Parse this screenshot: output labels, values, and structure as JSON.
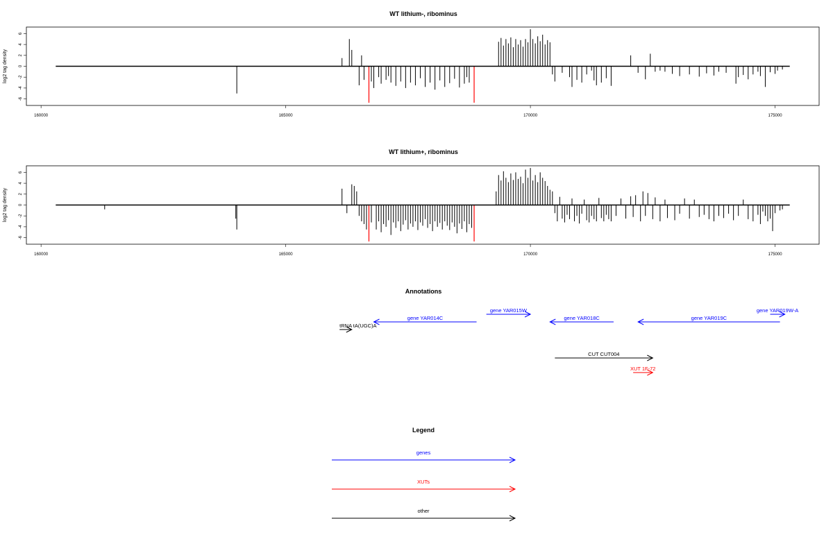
{
  "chart_data": [
    {
      "type": "bar",
      "title": "WT lithium-, ribominus",
      "ylabel": "log2 tag density",
      "xlabel": "",
      "xlim": [
        159700,
        175900
      ],
      "ylim": [
        -7.2,
        7.2
      ],
      "x_ticks": [
        160000,
        165000,
        170000,
        175000
      ],
      "x_tick_labels": [
        "160000",
        "165000",
        "170000",
        "175000"
      ],
      "y_ticks": [
        -6,
        -4,
        -2,
        0,
        2,
        4,
        6
      ],
      "y_tick_labels": [
        "-6",
        "-4",
        "-2",
        "0",
        "2",
        "4",
        "6"
      ],
      "baseline_range": [
        160300,
        175300
      ],
      "colors": {
        "default": "#000000",
        "highlight": "#ff0000"
      },
      "highlight_bars": [
        {
          "x": 166700,
          "y": -6.7
        },
        {
          "x": 168850,
          "y": -6.7
        }
      ],
      "bars": [
        [
          164000,
          -5.0
        ],
        [
          166150,
          1.5
        ],
        [
          166300,
          5.0
        ],
        [
          166350,
          3.0
        ],
        [
          166550,
          2.0
        ],
        [
          166500,
          -3.5
        ],
        [
          166600,
          -2.5
        ],
        [
          166750,
          -2.8
        ],
        [
          166800,
          -4.0
        ],
        [
          166900,
          -2.0
        ],
        [
          166950,
          -3.2
        ],
        [
          167050,
          -2.5
        ],
        [
          167100,
          -1.8
        ],
        [
          167150,
          -3.0
        ],
        [
          167250,
          -3.6
        ],
        [
          167350,
          -2.8
        ],
        [
          167450,
          -4.0
        ],
        [
          167550,
          -3.0
        ],
        [
          167650,
          -3.5
        ],
        [
          167750,
          -2.2
        ],
        [
          167850,
          -3.8
        ],
        [
          167950,
          -3.0
        ],
        [
          168050,
          -4.3
        ],
        [
          168150,
          -2.6
        ],
        [
          168250,
          -3.8
        ],
        [
          168350,
          -3.1
        ],
        [
          168450,
          -2.3
        ],
        [
          168550,
          -3.9
        ],
        [
          168650,
          -3.2
        ],
        [
          168700,
          -2.0
        ],
        [
          168750,
          -3.0
        ],
        [
          169350,
          4.5
        ],
        [
          169400,
          5.2
        ],
        [
          169450,
          3.8
        ],
        [
          169500,
          5.0
        ],
        [
          169550,
          4.2
        ],
        [
          169600,
          5.3
        ],
        [
          169650,
          3.5
        ],
        [
          169700,
          5.0
        ],
        [
          169750,
          4.0
        ],
        [
          169800,
          4.8
        ],
        [
          169850,
          3.6
        ],
        [
          169900,
          5.0
        ],
        [
          169950,
          4.4
        ],
        [
          170000,
          6.8
        ],
        [
          170050,
          5.0
        ],
        [
          170100,
          4.2
        ],
        [
          170150,
          5.5
        ],
        [
          170200,
          4.6
        ],
        [
          170250,
          5.8
        ],
        [
          170300,
          4.0
        ],
        [
          170350,
          4.8
        ],
        [
          170400,
          4.4
        ],
        [
          170450,
          -1.5
        ],
        [
          170500,
          -2.8
        ],
        [
          170650,
          -1.2
        ],
        [
          170800,
          -2.0
        ],
        [
          170850,
          -3.8
        ],
        [
          170950,
          -2.5
        ],
        [
          171050,
          -3.0
        ],
        [
          171150,
          -1.5
        ],
        [
          171250,
          -0.8
        ],
        [
          171300,
          -2.6
        ],
        [
          171350,
          -3.5
        ],
        [
          171450,
          -3.0
        ],
        [
          171550,
          -2.2
        ],
        [
          171650,
          -3.6
        ],
        [
          172050,
          2.0
        ],
        [
          172200,
          -1.2
        ],
        [
          172350,
          -2.4
        ],
        [
          172450,
          2.3
        ],
        [
          172550,
          -1.0
        ],
        [
          172650,
          -0.8
        ],
        [
          172750,
          -1.0
        ],
        [
          172900,
          -1.4
        ],
        [
          173050,
          -1.8
        ],
        [
          173250,
          -1.5
        ],
        [
          173450,
          -1.9
        ],
        [
          173600,
          -1.3
        ],
        [
          173750,
          -1.7
        ],
        [
          173850,
          -1.0
        ],
        [
          174000,
          -1.2
        ],
        [
          174200,
          -3.2
        ],
        [
          174250,
          -2.0
        ],
        [
          174350,
          -1.6
        ],
        [
          174450,
          -2.4
        ],
        [
          174550,
          -1.5
        ],
        [
          174650,
          -1.0
        ],
        [
          174700,
          -1.8
        ],
        [
          174800,
          -3.8
        ],
        [
          174900,
          -1.1
        ],
        [
          175000,
          -1.4
        ],
        [
          175050,
          -0.8
        ],
        [
          175150,
          -0.6
        ]
      ]
    },
    {
      "type": "bar",
      "title": "WT lithium+, ribominus",
      "ylabel": "log2 tag density",
      "xlabel": "",
      "xlim": [
        159700,
        175900
      ],
      "ylim": [
        -7.2,
        7.2
      ],
      "x_ticks": [
        160000,
        165000,
        170000,
        175000
      ],
      "x_tick_labels": [
        "160000",
        "165000",
        "170000",
        "175000"
      ],
      "y_ticks": [
        -6,
        -4,
        -2,
        0,
        2,
        4,
        6
      ],
      "y_tick_labels": [
        "-6",
        "-4",
        "-2",
        "0",
        "2",
        "4",
        "6"
      ],
      "baseline_range": [
        160300,
        175300
      ],
      "colors": {
        "default": "#000000",
        "highlight": "#ff0000"
      },
      "highlight_bars": [
        {
          "x": 166700,
          "y": -6.7
        },
        {
          "x": 168850,
          "y": -6.7
        }
      ],
      "bars": [
        [
          161300,
          -0.8
        ],
        [
          164000,
          -4.5
        ],
        [
          163980,
          -2.5
        ],
        [
          166150,
          3.0
        ],
        [
          166250,
          -1.5
        ],
        [
          166350,
          3.8
        ],
        [
          166400,
          3.5
        ],
        [
          166450,
          2.5
        ],
        [
          166500,
          -2.0
        ],
        [
          166550,
          -3.0
        ],
        [
          166600,
          -3.5
        ],
        [
          166650,
          -4.5
        ],
        [
          166750,
          -3.2
        ],
        [
          166850,
          -4.5
        ],
        [
          166900,
          -3.0
        ],
        [
          166950,
          -5.0
        ],
        [
          167000,
          -3.5
        ],
        [
          167050,
          -4.0
        ],
        [
          167100,
          -2.8
        ],
        [
          167150,
          -5.5
        ],
        [
          167200,
          -3.2
        ],
        [
          167250,
          -4.2
        ],
        [
          167300,
          -3.0
        ],
        [
          167350,
          -4.8
        ],
        [
          167400,
          -3.6
        ],
        [
          167450,
          -2.8
        ],
        [
          167500,
          -4.5
        ],
        [
          167550,
          -3.4
        ],
        [
          167600,
          -4.0
        ],
        [
          167650,
          -3.0
        ],
        [
          167700,
          -4.6
        ],
        [
          167750,
          -3.2
        ],
        [
          167800,
          -3.8
        ],
        [
          167850,
          -2.6
        ],
        [
          167900,
          -4.2
        ],
        [
          167950,
          -3.5
        ],
        [
          168000,
          -4.8
        ],
        [
          168050,
          -3.0
        ],
        [
          168100,
          -4.0
        ],
        [
          168150,
          -3.3
        ],
        [
          168200,
          -4.5
        ],
        [
          168250,
          -3.0
        ],
        [
          168300,
          -3.8
        ],
        [
          168350,
          -4.6
        ],
        [
          168400,
          -3.2
        ],
        [
          168450,
          -4.0
        ],
        [
          168500,
          -5.2
        ],
        [
          168550,
          -3.4
        ],
        [
          168600,
          -4.4
        ],
        [
          168650,
          -3.0
        ],
        [
          168700,
          -5.0
        ],
        [
          168750,
          -3.5
        ],
        [
          168800,
          -4.2
        ],
        [
          169300,
          2.5
        ],
        [
          169350,
          5.5
        ],
        [
          169400,
          4.5
        ],
        [
          169450,
          6.2
        ],
        [
          169500,
          5.0
        ],
        [
          169550,
          4.2
        ],
        [
          169600,
          5.8
        ],
        [
          169650,
          4.6
        ],
        [
          169700,
          6.0
        ],
        [
          169750,
          4.8
        ],
        [
          169800,
          5.2
        ],
        [
          169850,
          4.0
        ],
        [
          169900,
          6.5
        ],
        [
          169950,
          5.0
        ],
        [
          170000,
          6.8
        ],
        [
          170050,
          4.5
        ],
        [
          170100,
          5.5
        ],
        [
          170150,
          4.2
        ],
        [
          170200,
          6.0
        ],
        [
          170250,
          5.0
        ],
        [
          170300,
          4.4
        ],
        [
          170350,
          3.5
        ],
        [
          170400,
          2.8
        ],
        [
          170450,
          2.5
        ],
        [
          170500,
          -1.5
        ],
        [
          170550,
          -3.0
        ],
        [
          170600,
          1.5
        ],
        [
          170650,
          -2.5
        ],
        [
          170700,
          -3.2
        ],
        [
          170750,
          -1.8
        ],
        [
          170800,
          -2.6
        ],
        [
          170850,
          1.2
        ],
        [
          170900,
          -3.0
        ],
        [
          170950,
          -2.0
        ],
        [
          171000,
          -3.4
        ],
        [
          171050,
          -1.6
        ],
        [
          171100,
          1.0
        ],
        [
          171150,
          -2.8
        ],
        [
          171200,
          -3.2
        ],
        [
          171250,
          -2.0
        ],
        [
          171300,
          -2.6
        ],
        [
          171350,
          -3.0
        ],
        [
          171400,
          1.3
        ],
        [
          171450,
          -2.4
        ],
        [
          171500,
          -3.0
        ],
        [
          171550,
          -1.8
        ],
        [
          171600,
          -2.6
        ],
        [
          171650,
          -3.0
        ],
        [
          171750,
          -2.0
        ],
        [
          171850,
          1.2
        ],
        [
          171950,
          -2.5
        ],
        [
          172050,
          1.6
        ],
        [
          172100,
          -2.2
        ],
        [
          172150,
          1.8
        ],
        [
          172250,
          -3.0
        ],
        [
          172300,
          2.5
        ],
        [
          172350,
          -2.0
        ],
        [
          172400,
          2.2
        ],
        [
          172500,
          -2.6
        ],
        [
          172550,
          1.4
        ],
        [
          172650,
          -3.0
        ],
        [
          172750,
          1.0
        ],
        [
          172800,
          -2.4
        ],
        [
          172950,
          -2.8
        ],
        [
          173050,
          -1.6
        ],
        [
          173150,
          1.2
        ],
        [
          173250,
          -2.5
        ],
        [
          173350,
          1.0
        ],
        [
          173450,
          -2.2
        ],
        [
          173550,
          -1.8
        ],
        [
          173650,
          -2.6
        ],
        [
          173750,
          -3.0
        ],
        [
          173850,
          -2.0
        ],
        [
          173950,
          -2.4
        ],
        [
          174050,
          -1.6
        ],
        [
          174150,
          -2.8
        ],
        [
          174250,
          -2.0
        ],
        [
          174350,
          1.0
        ],
        [
          174450,
          -2.6
        ],
        [
          174550,
          -3.0
        ],
        [
          174650,
          -1.8
        ],
        [
          174700,
          -3.5
        ],
        [
          174750,
          -1.2
        ],
        [
          174800,
          -2.0
        ],
        [
          174850,
          -3.0
        ],
        [
          174900,
          -2.5
        ],
        [
          174950,
          -4.8
        ],
        [
          175000,
          -1.5
        ],
        [
          175100,
          -1.0
        ],
        [
          175150,
          -0.8
        ]
      ]
    }
  ],
  "annotations": {
    "title": "Annotations",
    "items": [
      {
        "label": "tRNA tA(UGC)A",
        "start": 166100,
        "end": 166350,
        "strand": "+",
        "color": "#000000",
        "row": 2
      },
      {
        "label": "gene YAR014C",
        "start": 166800,
        "end": 168900,
        "strand": "-",
        "color": "#0000ff",
        "row": 1
      },
      {
        "label": "gene YAR015W",
        "start": 169100,
        "end": 170000,
        "strand": "+",
        "color": "#0000ff",
        "row": 0
      },
      {
        "label": "gene YAR018C",
        "start": 170400,
        "end": 171700,
        "strand": "-",
        "color": "#0000ff",
        "row": 1
      },
      {
        "label": "gene YAR019C",
        "start": 172200,
        "end": 175100,
        "strand": "-",
        "color": "#0000ff",
        "row": 1
      },
      {
        "label": "gene YAR019W-A",
        "start": 174900,
        "end": 175200,
        "strand": "+",
        "color": "#0000ff",
        "row": 0
      },
      {
        "label": "CUT CUT004",
        "start": 170500,
        "end": 172500,
        "strand": "+",
        "color": "#000000",
        "row": 4
      },
      {
        "label": "XUT 1F-72",
        "start": 172100,
        "end": 172500,
        "strand": "+",
        "color": "#ff0000",
        "row": 5
      }
    ]
  },
  "legend": {
    "title": "Legend",
    "items": [
      {
        "label": "genes",
        "color": "#0000ff"
      },
      {
        "label": "XUTs",
        "color": "#ff0000"
      },
      {
        "label": "other",
        "color": "#000000"
      }
    ]
  }
}
